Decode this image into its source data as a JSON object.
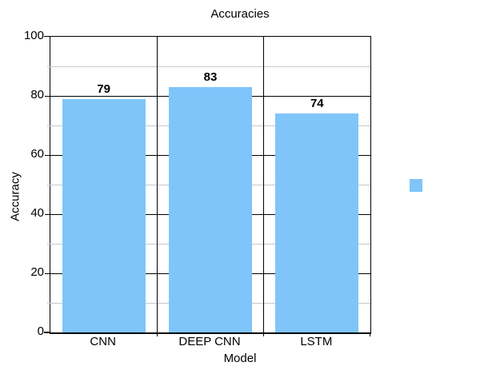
{
  "chart_data": {
    "type": "bar",
    "title": "Accuracies",
    "categories": [
      "CNN",
      "DEEP CNN",
      "LSTM"
    ],
    "values": [
      79,
      83,
      74
    ],
    "value_labels": [
      "79",
      "83",
      "74"
    ],
    "xlabel": "Model",
    "ylabel": "Accuracy",
    "ylim": [
      0,
      100
    ],
    "y_major_ticks": [
      0,
      20,
      40,
      60,
      80,
      100
    ],
    "y_minor_ticks": [
      10,
      30,
      50,
      70,
      90
    ],
    "grid": true,
    "legend_position": "right",
    "legend": {
      "label": "",
      "swatch_color": "#7FC5FA"
    },
    "colors": {
      "bar": "#7FC5FA",
      "major_gridline": "#000000",
      "minor_gridline": "#C8C8C8",
      "text": "#000000",
      "background": "#FFFFFF"
    }
  }
}
